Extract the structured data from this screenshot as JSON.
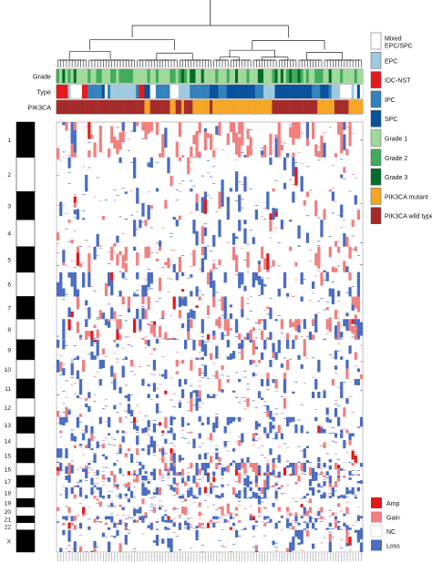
{
  "chart_data": {
    "type": "heatmap",
    "n_samples": 108,
    "tracks": [
      {
        "key": "grade",
        "label": "Grade"
      },
      {
        "key": "type",
        "label": "Type"
      },
      {
        "key": "pik3ca",
        "label": "PIK3CA"
      }
    ],
    "chromosomes": [
      "1",
      "2",
      "3",
      "4",
      "5",
      "6",
      "7",
      "8",
      "9",
      "10",
      "11",
      "12",
      "13",
      "14",
      "15",
      "16",
      "17",
      "18",
      "19",
      "20",
      "21",
      "22",
      "X"
    ],
    "legend_annotations": [
      {
        "label": "Mixed EPC/SPC",
        "label_lines": [
          "Mixed",
          "EPC/SPC"
        ],
        "color": "#ffffff"
      },
      {
        "label": "EPC",
        "color": "#9ecae1"
      },
      {
        "label": "IDC-NST",
        "color": "#e31a1c"
      },
      {
        "label": "IPC",
        "color": "#3182bd"
      },
      {
        "label": "SPC",
        "color": "#08519c"
      },
      {
        "label": "Grade 1",
        "color": "#a1d99b"
      },
      {
        "label": "Grade 2",
        "color": "#41ab5d"
      },
      {
        "label": "Grade 3",
        "color": "#006d2c"
      },
      {
        "label": "PIK3CA mutant",
        "color": "#f5a623"
      },
      {
        "label": "PIK3CA wild type",
        "color": "#a52a2a"
      }
    ],
    "legend_cna": [
      {
        "label": "Amp",
        "color": "#e31a1c"
      },
      {
        "label": "Gain",
        "color": "#f08080"
      },
      {
        "label": "NC",
        "color": "#ffffff"
      },
      {
        "label": "Loss",
        "color": "#4a6cc2"
      }
    ],
    "grid": false,
    "legend_position": "right"
  }
}
